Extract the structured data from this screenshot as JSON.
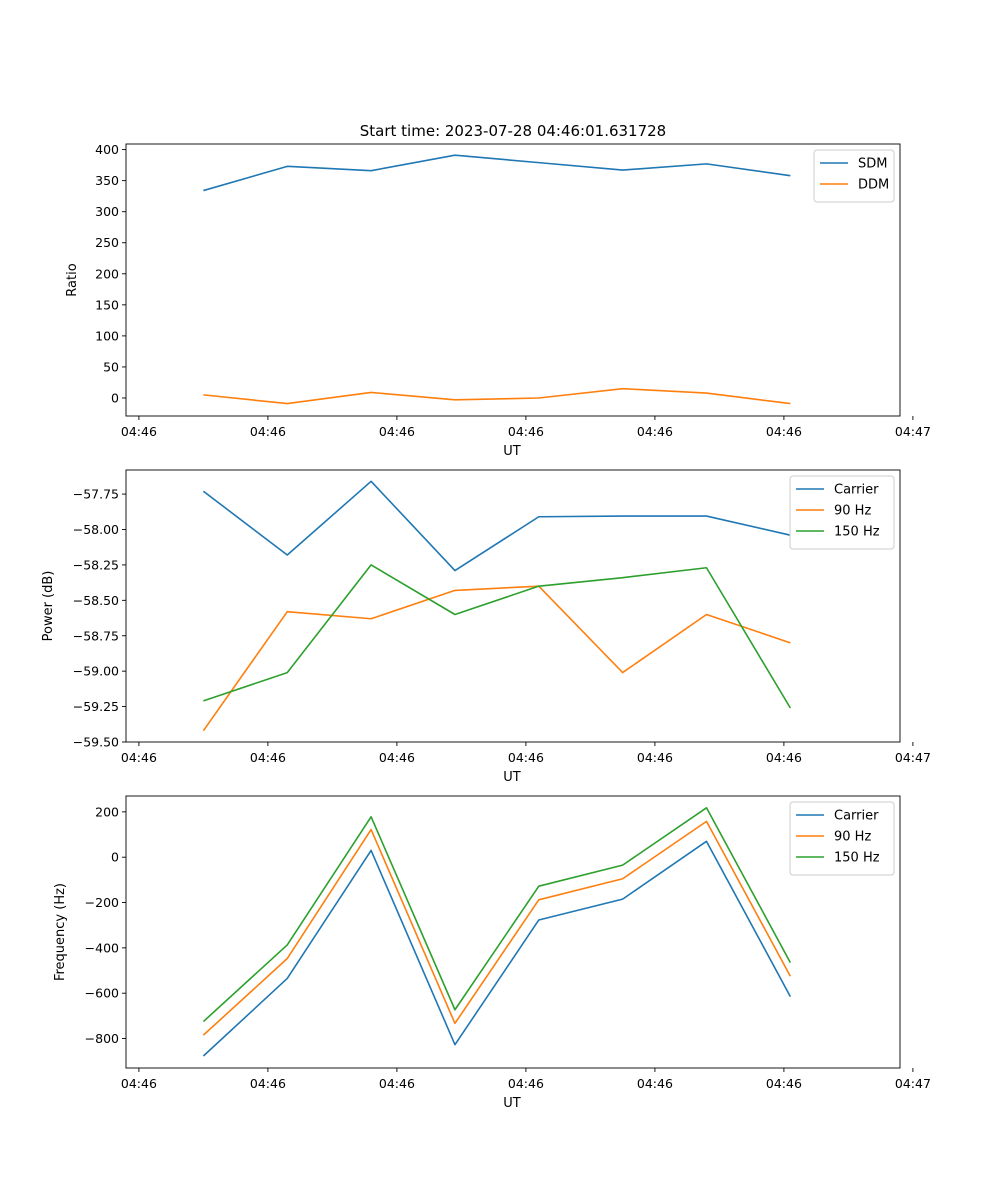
{
  "figure": {
    "title": "Start time: 2023-07-28 04:46:01.631728"
  },
  "colors": {
    "blue": "#1f77b4",
    "orange": "#ff7f0e",
    "green": "#2ca02c"
  },
  "chart_data": [
    {
      "type": "line",
      "xlabel": "UT",
      "ylabel": "Ratio",
      "x": [
        0.5,
        1.15,
        1.8,
        2.45,
        3.1,
        3.75,
        4.4,
        5.05
      ],
      "xlim": [
        -0.1,
        5.9
      ],
      "x_ticks": [
        0,
        1,
        2,
        3,
        4,
        5,
        6
      ],
      "x_tick_labels": [
        "04:46",
        "04:46",
        "04:46",
        "04:46",
        "04:46",
        "04:46",
        "04:47"
      ],
      "ylim": [
        -29,
        409
      ],
      "y_ticks": [
        0,
        50,
        100,
        150,
        200,
        250,
        300,
        350,
        400
      ],
      "y_tick_labels": [
        "0",
        "50",
        "100",
        "150",
        "200",
        "250",
        "300",
        "350",
        "400"
      ],
      "legend_position": "top-right",
      "series": [
        {
          "name": "SDM",
          "color": "#1f77b4",
          "values": [
            334,
            373,
            366,
            391,
            379,
            367,
            377,
            358
          ]
        },
        {
          "name": "DDM",
          "color": "#ff7f0e",
          "values": [
            5,
            -9,
            9,
            -3,
            0,
            15,
            8,
            -9
          ]
        }
      ]
    },
    {
      "type": "line",
      "xlabel": "UT",
      "ylabel": "Power (dB)",
      "x": [
        0.5,
        1.15,
        1.8,
        2.45,
        3.1,
        3.75,
        4.4,
        5.05
      ],
      "xlim": [
        -0.1,
        5.9
      ],
      "x_ticks": [
        0,
        1,
        2,
        3,
        4,
        5,
        6
      ],
      "x_tick_labels": [
        "04:46",
        "04:46",
        "04:46",
        "04:46",
        "04:46",
        "04:46",
        "04:47"
      ],
      "ylim": [
        -59.5,
        -57.58
      ],
      "y_ticks": [
        -59.5,
        -59.25,
        -59.0,
        -58.75,
        -58.5,
        -58.25,
        -58.0,
        -57.75
      ],
      "y_tick_labels": [
        "−59.50",
        "−59.25",
        "−59.00",
        "−58.75",
        "−58.50",
        "−58.25",
        "−58.00",
        "−57.75"
      ],
      "legend_position": "top-right",
      "series": [
        {
          "name": "Carrier",
          "color": "#1f77b4",
          "values": [
            -57.73,
            -58.18,
            -57.66,
            -58.29,
            -57.91,
            -57.905,
            -57.905,
            -58.04
          ]
        },
        {
          "name": "90 Hz",
          "color": "#ff7f0e",
          "values": [
            -59.42,
            -58.58,
            -58.63,
            -58.43,
            -58.4,
            -59.01,
            -58.6,
            -58.8
          ]
        },
        {
          "name": "150 Hz",
          "color": "#2ca02c",
          "values": [
            -59.21,
            -59.01,
            -58.25,
            -58.6,
            -58.4,
            -58.34,
            -58.27,
            -59.26
          ]
        }
      ]
    },
    {
      "type": "line",
      "xlabel": "UT",
      "ylabel": "Frequency (Hz)",
      "x": [
        0.5,
        1.15,
        1.8,
        2.45,
        3.1,
        3.75,
        4.4,
        5.05
      ],
      "xlim": [
        -0.1,
        5.9
      ],
      "x_ticks": [
        0,
        1,
        2,
        3,
        4,
        5,
        6
      ],
      "x_tick_labels": [
        "04:46",
        "04:46",
        "04:46",
        "04:46",
        "04:46",
        "04:46",
        "04:47"
      ],
      "ylim": [
        -930,
        270
      ],
      "y_ticks": [
        -800,
        -600,
        -400,
        -200,
        0,
        200
      ],
      "y_tick_labels": [
        "−800",
        "−600",
        "−400",
        "−200",
        "0",
        "200"
      ],
      "legend_position": "top-right",
      "series": [
        {
          "name": "Carrier",
          "color": "#1f77b4",
          "values": [
            -877,
            -535,
            30,
            -827,
            -277,
            -185,
            70,
            -615
          ]
        },
        {
          "name": "90 Hz",
          "color": "#ff7f0e",
          "values": [
            -785,
            -447,
            122,
            -733,
            -188,
            -95,
            158,
            -525
          ]
        },
        {
          "name": "150 Hz",
          "color": "#2ca02c",
          "values": [
            -725,
            -387,
            178,
            -673,
            -128,
            -35,
            218,
            -465
          ]
        }
      ]
    }
  ]
}
